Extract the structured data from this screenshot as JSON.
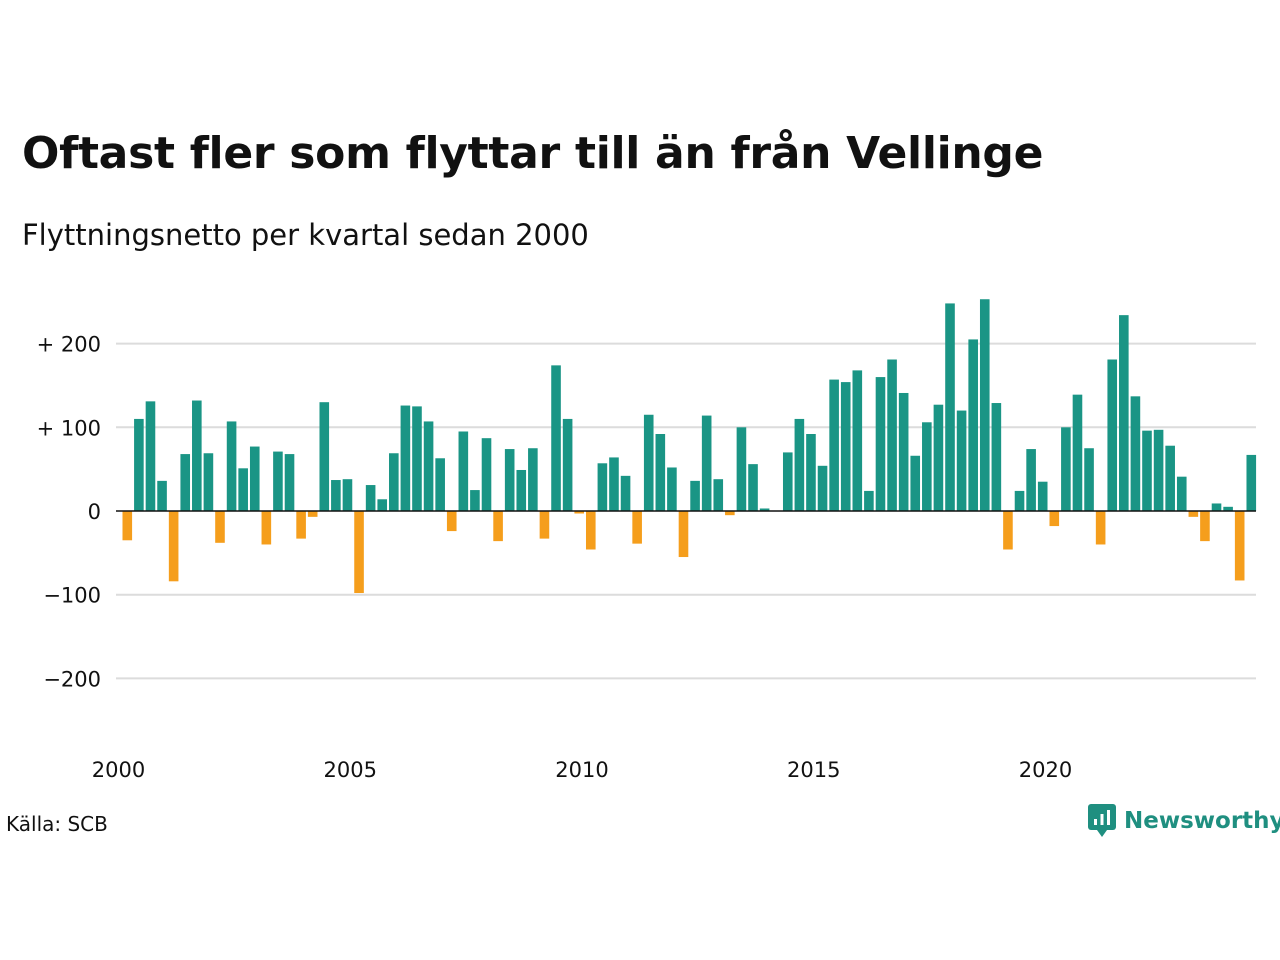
{
  "title": "Oftast fler som flyttar till än från Vellinge",
  "subtitle": "Flyttningsnetto per kvartal sedan 2000",
  "source": "Källa: SCB",
  "brand": "Newsworthy",
  "colors": {
    "positive": "#1a9585",
    "negative": "#f59e1c",
    "grid": "#dcdcdc",
    "brand": "#1f8f80"
  },
  "icons": {
    "logo": "newsworthy-chart-bubble-icon"
  },
  "chart_data": {
    "type": "bar",
    "title": "Oftast fler som flyttar till än från Vellinge",
    "subtitle": "Flyttningsnetto per kvartal sedan 2000",
    "ylim": [
      -250,
      250
    ],
    "yticks": [
      -200,
      -100,
      0,
      100,
      200
    ],
    "ytick_labels": [
      "−200",
      "−100",
      "0",
      "+ 100",
      "+ 200"
    ],
    "x_start_year": 2000,
    "xtick_years": [
      2000,
      2005,
      2010,
      2015,
      2020
    ],
    "grid": true,
    "legend": "none",
    "values": [
      -35,
      110,
      131,
      36,
      -84,
      68,
      132,
      69,
      -38,
      107,
      51,
      77,
      -40,
      71,
      68,
      -33,
      -7,
      130,
      37,
      38,
      -98,
      31,
      14,
      69,
      126,
      125,
      107,
      63,
      -24,
      95,
      25,
      87,
      -36,
      74,
      49,
      75,
      -33,
      174,
      110,
      -3,
      -46,
      57,
      64,
      42,
      -39,
      115,
      92,
      52,
      -55,
      36,
      114,
      38,
      -5,
      100,
      56,
      3,
      0,
      70,
      110,
      92,
      54,
      157,
      154,
      168,
      24,
      160,
      181,
      141,
      66,
      106,
      127,
      248,
      120,
      205,
      253,
      129,
      -46,
      24,
      74,
      35,
      -18,
      100,
      139,
      75,
      -40,
      181,
      234,
      137,
      96,
      97,
      78,
      41,
      -7,
      -36,
      9,
      5,
      -83,
      67
    ]
  }
}
